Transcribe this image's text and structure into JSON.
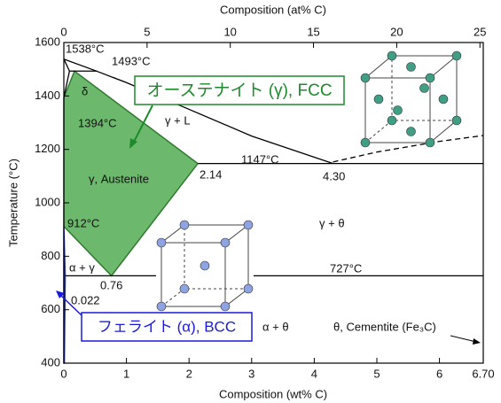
{
  "chart_data": {
    "type": "line",
    "xlabel": "Composition (wt% C)",
    "x2label": "Composition (at% C)",
    "ylabel": "Temperature (°C)",
    "xlim": [
      0,
      6.7
    ],
    "xticks": [
      0,
      1,
      2,
      3,
      4,
      5,
      6,
      {
        "value": 6.7,
        "label": "6.70"
      }
    ],
    "x2lim": [
      0,
      25.2
    ],
    "x2ticks": [
      0,
      5,
      10,
      15,
      20,
      25
    ],
    "ylim": [
      400,
      1600
    ],
    "yticks": [
      400,
      600,
      800,
      1000,
      1200,
      1400,
      1600
    ],
    "series": [
      {
        "color": "#000000",
        "x": [
          0,
          0.5,
          1,
          2,
          3,
          4.3
        ],
        "values": [
          1538,
          1495,
          1450,
          1350,
          1250,
          1147
        ]
      },
      {
        "color": "#000000",
        "x": [
          0,
          0.09
        ],
        "values": [
          1538,
          1493
        ]
      },
      {
        "color": "#000000",
        "x": [
          0,
          0.09
        ],
        "values": [
          1394,
          1493
        ]
      },
      {
        "color": "#000000",
        "x": [
          0.09,
          0.53
        ],
        "values": [
          1493,
          1493
        ]
      },
      {
        "color": "#000000",
        "x": [
          2.14,
          6.7
        ],
        "values": [
          1147,
          1147
        ]
      },
      {
        "color": "#000000",
        "x": [
          0.022,
          6.7
        ],
        "values": [
          727,
          727
        ]
      },
      {
        "color": "#000000",
        "dashed": true,
        "x": [
          4.3,
          5,
          6,
          6.7
        ],
        "values": [
          1153,
          1190,
          1230,
          1252
        ]
      }
    ],
    "regions": [
      {
        "label": "γ, Austenite",
        "color": "#6cb86c",
        "edge": "#2f7a2f",
        "x": [
          0,
          0.17,
          2.14,
          0.76,
          0
        ],
        "values": [
          1394,
          1493,
          1147,
          727,
          912
        ]
      },
      {
        "color": "#6f86d8",
        "edge": "#1a2fcf",
        "x": [
          0,
          0.022,
          0.008,
          0
        ],
        "values": [
          912,
          727,
          400,
          400
        ]
      }
    ],
    "annotations": [
      "1538°C",
      "1493°C",
      "δ",
      "1394°C",
      "γ + L",
      "1147°C",
      "2.14",
      "4.30",
      "912°C",
      "γ + θ",
      "α + γ",
      "727°C",
      "0.76",
      "0.022",
      "α + θ",
      "θ, Cementite (Fe₃C)"
    ],
    "callouts": [
      "オーステナイト (γ), FCC",
      "フェライト (α), BCC"
    ]
  }
}
